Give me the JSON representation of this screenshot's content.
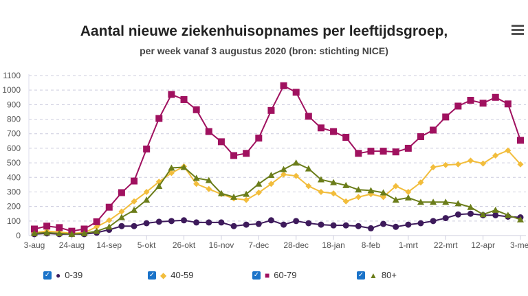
{
  "chart_data": {
    "type": "line",
    "title": "Aantal nieuwe ziekenhuisopnames per leeftijdsgroep,",
    "subtitle": "per week vanaf 3 augustus 2020 (bron: stichting NICE)",
    "xlabel": "",
    "ylabel": "",
    "ylim": [
      0,
      1100
    ],
    "yticks": [
      0,
      100,
      200,
      300,
      400,
      500,
      600,
      700,
      800,
      900,
      1000,
      1100
    ],
    "grid": true,
    "legend_position": "bottom",
    "x_tick_labels": [
      "3-aug",
      "24-aug",
      "14-sep",
      "5-okt",
      "26-okt",
      "16-nov",
      "7-dec",
      "28-dec",
      "18-jan",
      "8-feb",
      "1-mrt",
      "22-mrt",
      "12-apr",
      "3-mei"
    ],
    "x_tick_every_weeks": 3,
    "series": [
      {
        "name": "0-39",
        "color": "#3d1a5b",
        "marker": "circle",
        "values": [
          10,
          15,
          10,
          10,
          10,
          20,
          40,
          65,
          65,
          85,
          95,
          100,
          105,
          90,
          90,
          90,
          65,
          75,
          80,
          105,
          75,
          100,
          85,
          75,
          70,
          70,
          65,
          50,
          80,
          60,
          75,
          85,
          100,
          120,
          145,
          150,
          140,
          140,
          130,
          125
        ]
      },
      {
        "name": "40-59",
        "color": "#f2bd3c",
        "marker": "diamond",
        "values": [
          20,
          30,
          25,
          15,
          20,
          60,
          105,
          165,
          235,
          300,
          370,
          430,
          475,
          355,
          320,
          285,
          255,
          245,
          295,
          355,
          420,
          410,
          340,
          300,
          290,
          235,
          265,
          285,
          265,
          340,
          300,
          365,
          470,
          485,
          490,
          515,
          495,
          550,
          585,
          490
        ]
      },
      {
        "name": "60-79",
        "color": "#a0115f",
        "marker": "square",
        "values": [
          45,
          65,
          55,
          30,
          45,
          95,
          195,
          295,
          375,
          595,
          805,
          970,
          935,
          865,
          715,
          645,
          550,
          565,
          670,
          860,
          1030,
          985,
          820,
          740,
          715,
          675,
          565,
          580,
          580,
          575,
          600,
          680,
          725,
          815,
          890,
          930,
          910,
          950,
          905,
          655
        ]
      },
      {
        "name": "80+",
        "color": "#6b7d1a",
        "marker": "triangle",
        "values": [
          15,
          20,
          15,
          10,
          15,
          30,
          60,
          125,
          175,
          245,
          340,
          465,
          470,
          395,
          380,
          290,
          265,
          285,
          355,
          415,
          455,
          500,
          460,
          385,
          365,
          345,
          315,
          310,
          295,
          245,
          260,
          230,
          230,
          230,
          220,
          195,
          145,
          175,
          140,
          110
        ]
      }
    ]
  },
  "legend": {
    "checkbox_mark": "✓",
    "checked": [
      true,
      true,
      true,
      true
    ]
  },
  "icons": {
    "menu": "hamburger-menu-icon"
  }
}
